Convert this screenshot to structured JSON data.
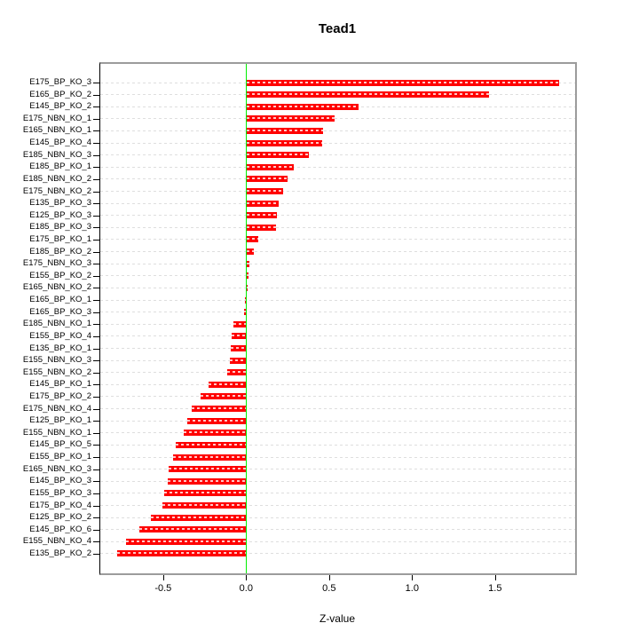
{
  "title": "Tead1",
  "chart_data": {
    "type": "bar",
    "orientation": "horizontal",
    "title": "Tead1",
    "xlabel": "Z-value",
    "ylabel": "",
    "legend": "none",
    "grid": "dashed horizontal line per category, light gray",
    "zero_reference_line": true,
    "xlim": [
      -0.875,
      1.985
    ],
    "x_ticks": [
      {
        "value": -0.5,
        "label": "-0.5"
      },
      {
        "value": 0.0,
        "label": "0.0"
      },
      {
        "value": 0.5,
        "label": "0.5"
      },
      {
        "value": 1.0,
        "label": "1.0"
      },
      {
        "value": 1.5,
        "label": "1.5"
      }
    ],
    "categories": [
      "E175_BP_KO_3",
      "E165_BP_KO_2",
      "E145_BP_KO_2",
      "E175_NBN_KO_1",
      "E165_NBN_KO_1",
      "E145_BP_KO_4",
      "E185_NBN_KO_3",
      "E185_BP_KO_1",
      "E185_NBN_KO_2",
      "E175_NBN_KO_2",
      "E135_BP_KO_3",
      "E125_BP_KO_3",
      "E185_BP_KO_3",
      "E175_BP_KO_1",
      "E185_BP_KO_2",
      "E175_NBN_KO_3",
      "E155_BP_KO_2",
      "E165_NBN_KO_2",
      "E165_BP_KO_1",
      "E165_BP_KO_3",
      "E185_NBN_KO_1",
      "E155_BP_KO_4",
      "E135_BP_KO_1",
      "E155_NBN_KO_3",
      "E155_NBN_KO_2",
      "E145_BP_KO_1",
      "E175_BP_KO_2",
      "E175_NBN_KO_4",
      "E125_BP_KO_1",
      "E155_NBN_KO_1",
      "E145_BP_KO_5",
      "E155_BP_KO_1",
      "E165_NBN_KO_3",
      "E145_BP_KO_3",
      "E155_BP_KO_3",
      "E175_BP_KO_4",
      "E125_BP_KO_2",
      "E145_BP_KO_6",
      "E155_NBN_KO_4",
      "E135_BP_KO_2"
    ],
    "values": [
      1.88,
      1.46,
      0.67,
      0.53,
      0.46,
      0.455,
      0.375,
      0.28,
      0.245,
      0.22,
      0.19,
      0.18,
      0.175,
      0.07,
      0.04,
      0.015,
      0.01,
      0.004,
      -0.01,
      -0.02,
      -0.08,
      -0.09,
      -0.1,
      -0.105,
      -0.12,
      -0.23,
      -0.28,
      -0.335,
      -0.36,
      -0.38,
      -0.43,
      -0.445,
      -0.47,
      -0.48,
      -0.5,
      -0.51,
      -0.58,
      -0.65,
      -0.73,
      -0.78
    ],
    "colors": {
      "bar": "#ff0000",
      "bar_inner_dash": "#ffb3b3",
      "zero_line": "#00ee00",
      "gridline": "#dedede",
      "box_border": "#9c9c9c",
      "axis": "#000000",
      "background": "#ffffff"
    }
  }
}
